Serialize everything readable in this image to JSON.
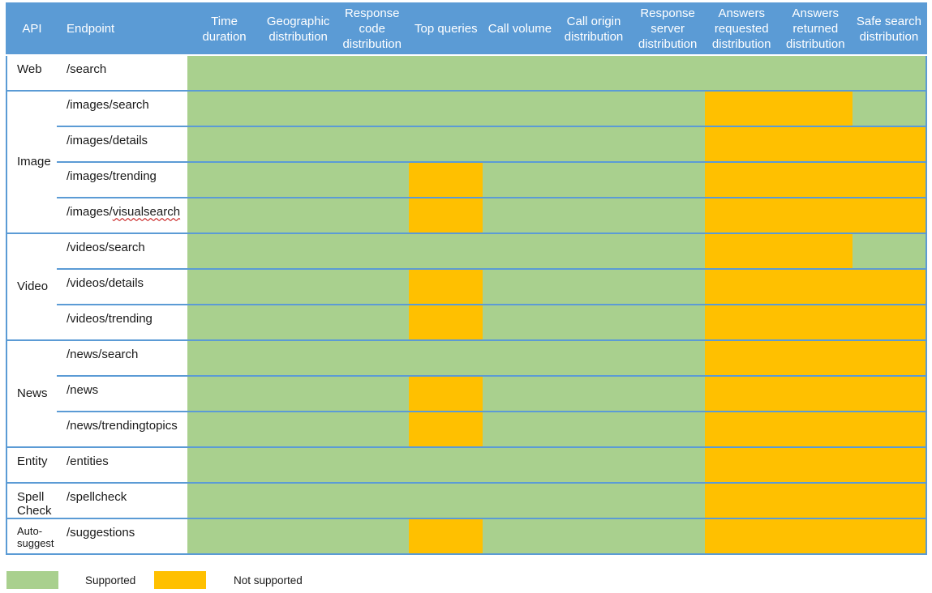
{
  "table": {
    "columns": [
      "API",
      "Endpoint",
      "Time duration",
      "Geographic distribution",
      "Response code distribution",
      "Top queries",
      "Call volume",
      "Call origin distribution",
      "Response server distribution",
      "Answers requested distribution",
      "Answers returned distribution",
      "Safe search distribution"
    ],
    "groups": [
      {
        "api": "Web",
        "endpoints": [
          {
            "path": "/search",
            "support": [
              "S",
              "S",
              "S",
              "S",
              "S",
              "S",
              "S",
              "S",
              "S",
              "S"
            ]
          }
        ]
      },
      {
        "api": "Image",
        "endpoints": [
          {
            "path": "/images/search",
            "support": [
              "S",
              "S",
              "S",
              "S",
              "S",
              "S",
              "S",
              "N",
              "N",
              "S"
            ]
          },
          {
            "path": "/images/details",
            "support": [
              "S",
              "S",
              "S",
              "S",
              "S",
              "S",
              "S",
              "N",
              "N",
              "N"
            ]
          },
          {
            "path": "/images/trending",
            "support": [
              "S",
              "S",
              "S",
              "N",
              "S",
              "S",
              "S",
              "N",
              "N",
              "N"
            ]
          },
          {
            "path": "/images/visualsearch",
            "misspelled": "visualsearch",
            "support": [
              "S",
              "S",
              "S",
              "N",
              "S",
              "S",
              "S",
              "N",
              "N",
              "N"
            ]
          }
        ]
      },
      {
        "api": "Video",
        "endpoints": [
          {
            "path": "/videos/search",
            "support": [
              "S",
              "S",
              "S",
              "S",
              "S",
              "S",
              "S",
              "N",
              "N",
              "S"
            ]
          },
          {
            "path": "/videos/details",
            "support": [
              "S",
              "S",
              "S",
              "N",
              "S",
              "S",
              "S",
              "N",
              "N",
              "N"
            ]
          },
          {
            "path": "/videos/trending",
            "support": [
              "S",
              "S",
              "S",
              "N",
              "S",
              "S",
              "S",
              "N",
              "N",
              "N"
            ]
          }
        ]
      },
      {
        "api": "News",
        "endpoints": [
          {
            "path": "/news/search",
            "support": [
              "S",
              "S",
              "S",
              "S",
              "S",
              "S",
              "S",
              "N",
              "N",
              "N"
            ]
          },
          {
            "path": "/news",
            "support": [
              "S",
              "S",
              "S",
              "N",
              "S",
              "S",
              "S",
              "N",
              "N",
              "N"
            ]
          },
          {
            "path": "/news/trendingtopics",
            "support": [
              "S",
              "S",
              "S",
              "N",
              "S",
              "S",
              "S",
              "N",
              "N",
              "N"
            ]
          }
        ]
      },
      {
        "api": "Entity",
        "endpoints": [
          {
            "path": "/entities",
            "support": [
              "S",
              "S",
              "S",
              "S",
              "S",
              "S",
              "S",
              "N",
              "N",
              "N"
            ]
          }
        ]
      },
      {
        "api": "Spell Check",
        "endpoints": [
          {
            "path": "/spellcheck",
            "support": [
              "S",
              "S",
              "S",
              "S",
              "S",
              "S",
              "S",
              "N",
              "N",
              "N"
            ]
          }
        ]
      },
      {
        "api": "Auto-suggest",
        "endpoints": [
          {
            "path": "/suggestions",
            "support": [
              "S",
              "S",
              "S",
              "N",
              "S",
              "S",
              "S",
              "N",
              "N",
              "N"
            ]
          }
        ]
      }
    ]
  },
  "legend": {
    "supported": "Supported",
    "not_supported": "Not supported"
  },
  "colors": {
    "header_bg": "#5B9BD5",
    "border": "#5B9BD5",
    "supported": "#A9D08E",
    "not_supported": "#FFC000"
  }
}
